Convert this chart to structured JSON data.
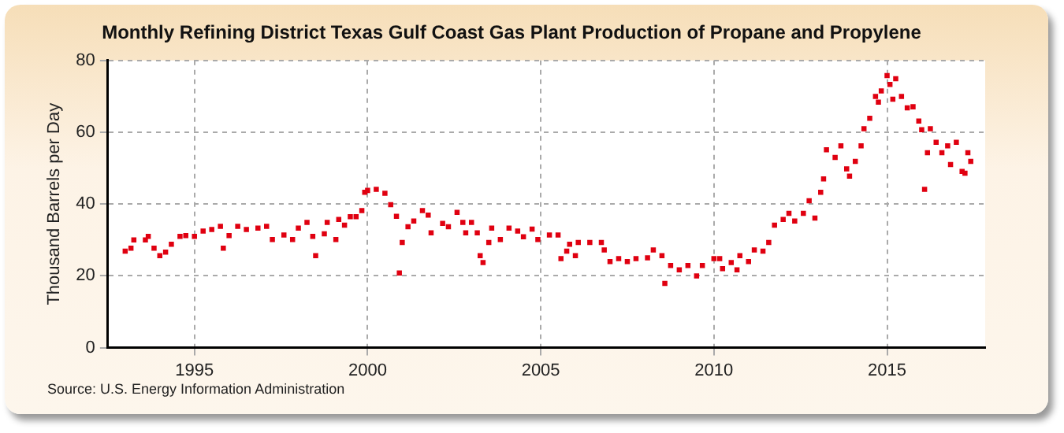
{
  "chart_data": {
    "type": "scatter",
    "title": "Monthly Refining District Texas Gulf Coast Gas Plant Production of Propane and Propylene",
    "ylabel": "Thousand Barrels per Day",
    "annotations": [
      "Source: U.S. Energy Information Administration"
    ],
    "xlim": [
      "1992-07",
      "2017-11"
    ],
    "xticks": [
      "1995",
      "2000",
      "2005",
      "2010",
      "2015"
    ],
    "ylim": [
      0,
      80
    ],
    "yticks": [
      0,
      20,
      40,
      60,
      80
    ],
    "grid": true,
    "marker": "square",
    "legend": false,
    "x": [
      "1993-01",
      "1993-03",
      "1993-04",
      "1993-08",
      "1993-09",
      "1993-11",
      "1994-01",
      "1994-03",
      "1994-05",
      "1994-08",
      "1994-10",
      "1995-01",
      "1995-04",
      "1995-07",
      "1995-10",
      "1995-11",
      "1996-01",
      "1996-04",
      "1996-07",
      "1996-11",
      "1997-02",
      "1997-04",
      "1997-08",
      "1997-11",
      "1998-01",
      "1998-04",
      "1998-06",
      "1998-07",
      "1998-10",
      "1998-11",
      "1999-02",
      "1999-03",
      "1999-05",
      "1999-07",
      "1999-09",
      "1999-11",
      "1999-12",
      "2000-01",
      "2000-04",
      "2000-07",
      "2000-09",
      "2000-11",
      "2000-12",
      "2001-01",
      "2001-03",
      "2001-05",
      "2001-08",
      "2001-10",
      "2001-11",
      "2002-03",
      "2002-05",
      "2002-08",
      "2002-10",
      "2002-11",
      "2003-01",
      "2003-03",
      "2003-04",
      "2003-05",
      "2003-07",
      "2003-08",
      "2003-11",
      "2004-02",
      "2004-05",
      "2004-07",
      "2004-10",
      "2004-12",
      "2005-04",
      "2005-07",
      "2005-08",
      "2005-10",
      "2005-11",
      "2006-01",
      "2006-02",
      "2006-06",
      "2006-10",
      "2006-11",
      "2007-01",
      "2007-04",
      "2007-07",
      "2007-10",
      "2008-02",
      "2008-04",
      "2008-07",
      "2008-08",
      "2008-10",
      "2009-01",
      "2009-04",
      "2009-07",
      "2009-09",
      "2010-01",
      "2010-03",
      "2010-04",
      "2010-07",
      "2010-09",
      "2010-10",
      "2011-01",
      "2011-03",
      "2011-06",
      "2011-08",
      "2011-10",
      "2012-01",
      "2012-03",
      "2012-05",
      "2012-08",
      "2012-10",
      "2012-12",
      "2013-02",
      "2013-03",
      "2013-04",
      "2013-07",
      "2013-09",
      "2013-11",
      "2013-12",
      "2014-02",
      "2014-04",
      "2014-05",
      "2014-07",
      "2014-09",
      "2014-10",
      "2014-11",
      "2015-01",
      "2015-02",
      "2015-03",
      "2015-04",
      "2015-06",
      "2015-08",
      "2015-10",
      "2015-12",
      "2016-01",
      "2016-02",
      "2016-03",
      "2016-04",
      "2016-06",
      "2016-08",
      "2016-10",
      "2016-11",
      "2017-01",
      "2017-03",
      "2017-04",
      "2017-05",
      "2017-06"
    ],
    "series": [
      {
        "color": "#e00010",
        "values": [
          26.9,
          27.7,
          30,
          30,
          31,
          27.7,
          25.6,
          26.6,
          28.8,
          31,
          31.2,
          31,
          32.5,
          32.9,
          33.8,
          27.7,
          31.2,
          33.8,
          32.9,
          33.3,
          33.8,
          30.1,
          31.4,
          30.1,
          33.3,
          34.9,
          31,
          25.6,
          31.7,
          34.9,
          30.1,
          35.7,
          34.1,
          36.5,
          36.5,
          38.2,
          43.3,
          43.8,
          44.1,
          43,
          39.8,
          36.6,
          20.8,
          29.3,
          33.7,
          35.3,
          38.2,
          36.9,
          32,
          34.6,
          33.7,
          37.7,
          34.9,
          32,
          34.9,
          32,
          25.6,
          23.7,
          29.3,
          33.3,
          30.1,
          33.3,
          32.5,
          30.9,
          33,
          30.1,
          31.4,
          31.4,
          24.8,
          26.9,
          28.8,
          25.6,
          29.3,
          29.3,
          29.3,
          27.2,
          24,
          24.8,
          24,
          24.8,
          25,
          27.2,
          25.6,
          17.9,
          22.9,
          21.7,
          22.9,
          20,
          22.9,
          24.8,
          24.8,
          22,
          23.7,
          21.7,
          25.6,
          24,
          27.2,
          26.9,
          29.3,
          34.1,
          35.7,
          37.4,
          35.3,
          37.4,
          40.9,
          36.1,
          43.3,
          47,
          55.1,
          53,
          56.2,
          49.8,
          47.8,
          51.9,
          56.2,
          61,
          63.9,
          70,
          68.4,
          71.5,
          75.8,
          73.3,
          69.2,
          74.9,
          70,
          66.8,
          67.1,
          63.1,
          60.7,
          44.1,
          54.3,
          61,
          57.2,
          54.3,
          56.2,
          51,
          57.2,
          49.1,
          48.6,
          54.3,
          51.9
        ]
      }
    ]
  }
}
